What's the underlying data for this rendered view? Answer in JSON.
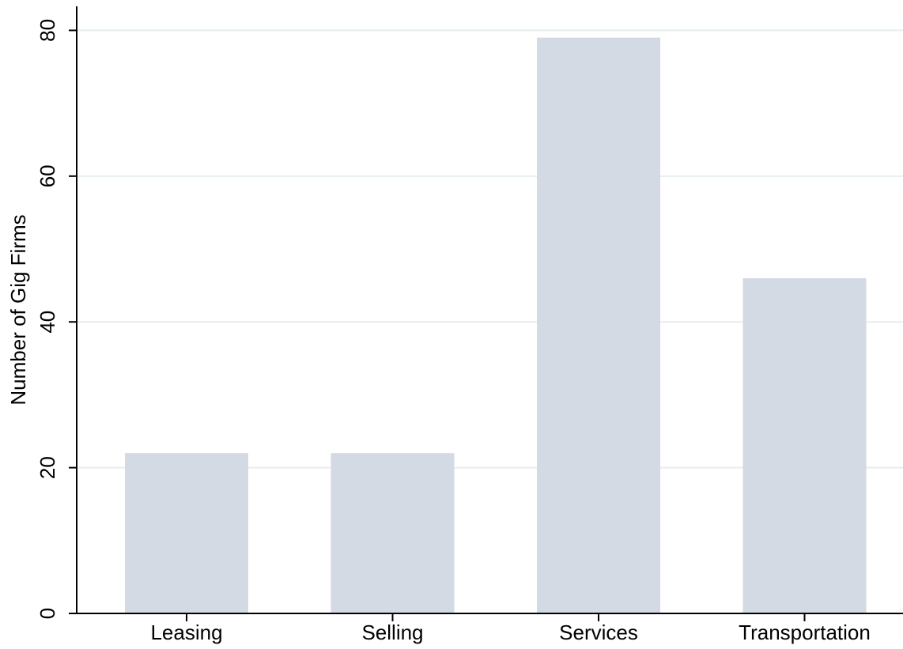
{
  "chart_data": {
    "type": "bar",
    "y_label": "Number of Gig Firms",
    "categories": [
      "Leasing",
      "Selling",
      "Services",
      "Transportation"
    ],
    "values": [
      22,
      22,
      79,
      46
    ],
    "color": "#d3dae3",
    "ylim": [
      0,
      83.3
    ],
    "yticks": [
      0,
      20,
      40,
      60,
      80
    ],
    "grid": true
  }
}
